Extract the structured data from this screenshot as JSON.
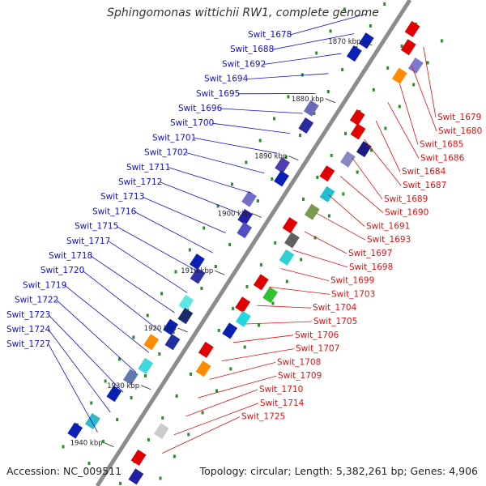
{
  "title": "Sphingomonas wittichii RW1, complete genome",
  "footer": {
    "accession": "Accession: NC_009511",
    "summary": "Topology: circular; Length: 5,382,261 bp; Genes: 4,906"
  },
  "colors": {
    "backbone": "#8c8c8c",
    "label_left": "#1010d0",
    "label_right": "#e01010",
    "tick_text": "#222222",
    "dot": "#2e8b2e"
  },
  "ticks": [
    {
      "label": "1870 kbp",
      "kbp": 1870
    },
    {
      "label": "1880 kbp",
      "kbp": 1880
    },
    {
      "label": "1890 kbp",
      "kbp": 1890
    },
    {
      "label": "1900 kbp",
      "kbp": 1900
    },
    {
      "label": "1910 kbp",
      "kbp": 1910
    },
    {
      "label": "1920 kbp",
      "kbp": 1920
    },
    {
      "label": "1930 kbp",
      "kbp": 1930
    },
    {
      "label": "1940 kbp",
      "kbp": 1940
    }
  ],
  "genes_left": [
    "Swit_1678",
    "Swit_1688",
    "Swit_1692",
    "Swit_1694",
    "Swit_1695",
    "Swit_1696",
    "Swit_1700",
    "Swit_1701",
    "Swit_1702",
    "Swit_1711",
    "Swit_1712",
    "Swit_1713",
    "Swit_1716",
    "Swit_1715",
    "Swit_1717",
    "Swit_1718",
    "Swit_1720",
    "Swit_1719",
    "Swit_1722",
    "Swit_1723",
    "Swit_1724",
    "Swit_1727"
  ],
  "genes_right": [
    "Swit_1679",
    "Swit_1680",
    "Swit_1685",
    "Swit_1686",
    "Swit_1684",
    "Swit_1687",
    "Swit_1689",
    "Swit_1690",
    "Swit_1691",
    "Swit_1693",
    "Swit_1697",
    "Swit_1698",
    "Swit_1699",
    "Swit_1703",
    "Swit_1704",
    "Swit_1705",
    "Swit_1706",
    "Swit_1707",
    "Swit_1708",
    "Swit_1709",
    "Swit_1710",
    "Swit_1714",
    "Swit_1725"
  ]
}
